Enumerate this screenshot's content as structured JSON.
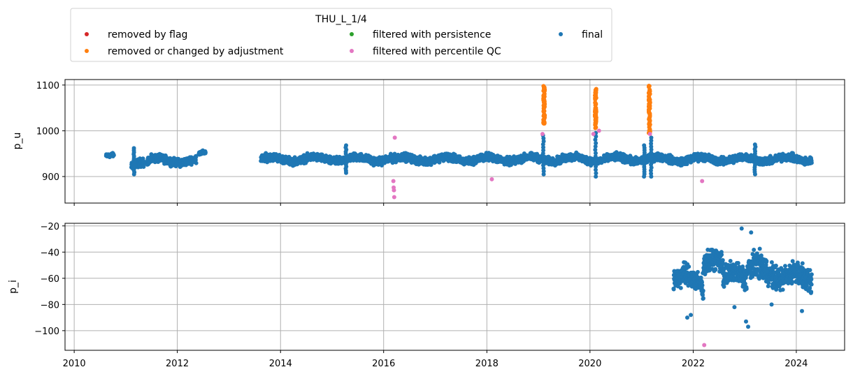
{
  "legend": {
    "title": "THU_L_1/4",
    "entries": [
      {
        "label": "removed by flag",
        "color": "#d62728"
      },
      {
        "label": "removed or changed by adjustment",
        "color": "#ff7f0e"
      },
      {
        "label": "filtered with persistence",
        "color": "#2ca02c"
      },
      {
        "label": "filtered with percentile QC",
        "color": "#e377c2"
      },
      {
        "label": "final",
        "color": "#1f77b4"
      }
    ]
  },
  "chart_data": [
    {
      "type": "scatter",
      "ylabel": "p_u",
      "xlim": [
        "2009-10-28",
        "2024-12-08"
      ],
      "ylim": [
        842,
        1112
      ],
      "xticks": [
        "2010",
        "2012",
        "2014",
        "2016",
        "2018",
        "2020",
        "2022",
        "2024"
      ],
      "yticks": [
        900,
        1000,
        1100
      ],
      "grid": true,
      "final_segments": [
        {
          "x": [
            "2010-08-15",
            "2010-10-10"
          ],
          "y": [
            945,
            6
          ]
        },
        {
          "x": [
            "2011-02-10",
            "2011-05-10"
          ],
          "y": [
            925,
            13
          ]
        },
        {
          "x": [
            "2011-06-01",
            "2012-05-15"
          ],
          "y": [
            935,
            12
          ]
        },
        {
          "x": [
            "2012-06-01",
            "2012-07-20"
          ],
          "y": [
            951,
            6
          ]
        },
        {
          "x": [
            "2013-08-15",
            "2016-03-01"
          ],
          "y": [
            938,
            12
          ]
        },
        {
          "x": [
            "2016-03-01",
            "2024-04-20"
          ],
          "y": [
            938,
            12
          ]
        }
      ],
      "final_spikes": [
        {
          "x": "2011-03-01",
          "y": [
            905,
            962
          ]
        },
        {
          "x": "2015-04-10",
          "y": [
            908,
            968
          ]
        },
        {
          "x": "2019-02-05",
          "y": [
            905,
            990
          ]
        },
        {
          "x": "2020-02-10",
          "y": [
            900,
            995
          ]
        },
        {
          "x": "2021-01-20",
          "y": [
            900,
            968
          ]
        },
        {
          "x": "2021-03-10",
          "y": [
            900,
            985
          ]
        },
        {
          "x": "2023-03-15",
          "y": [
            905,
            970
          ]
        }
      ],
      "adjustment_bands": [
        {
          "x": "2019-02-10",
          "y": [
            1015,
            1098
          ]
        },
        {
          "x": "2020-02-10",
          "y": [
            1005,
            1098
          ]
        },
        {
          "x": "2021-02-25",
          "y": [
            995,
            1100
          ]
        }
      ],
      "percentile_points": [
        {
          "x": "2016-03-10",
          "y": 890
        },
        {
          "x": "2016-03-12",
          "y": 876
        },
        {
          "x": "2016-03-14",
          "y": 870
        },
        {
          "x": "2016-03-16",
          "y": 855
        },
        {
          "x": "2016-03-20",
          "y": 985
        },
        {
          "x": "2018-02-05",
          "y": 894
        },
        {
          "x": "2019-01-30",
          "y": 993
        },
        {
          "x": "2020-01-25",
          "y": 993
        },
        {
          "x": "2020-03-05",
          "y": 1000
        },
        {
          "x": "2021-03-01",
          "y": 993
        },
        {
          "x": "2022-03-05",
          "y": 890
        }
      ]
    },
    {
      "type": "scatter",
      "ylabel": "p_i",
      "xlim": [
        "2009-10-28",
        "2024-12-08"
      ],
      "ylim": [
        -115,
        -18
      ],
      "xticks": [
        "2010",
        "2012",
        "2014",
        "2016",
        "2018",
        "2020",
        "2022",
        "2024"
      ],
      "yticks": [
        -20,
        -40,
        -60,
        -80,
        -100
      ],
      "grid": true,
      "final_segments": [
        {
          "x": [
            "2021-08-15",
            "2022-03-15"
          ],
          "y": [
            -62,
            12
          ]
        },
        {
          "x": [
            "2022-03-15",
            "2022-08-01"
          ],
          "y": [
            -50,
            12
          ]
        },
        {
          "x": [
            "2022-08-01",
            "2023-01-15"
          ],
          "y": [
            -60,
            12
          ]
        },
        {
          "x": [
            "2023-01-15",
            "2023-10-01"
          ],
          "y": [
            -55,
            14
          ]
        },
        {
          "x": [
            "2023-10-01",
            "2024-04-20"
          ],
          "y": [
            -60,
            12
          ]
        }
      ],
      "final_outliers": [
        {
          "x": "2021-11-20",
          "y": -90
        },
        {
          "x": "2021-12-15",
          "y": -88
        },
        {
          "x": "2022-10-20",
          "y": -82
        },
        {
          "x": "2022-12-10",
          "y": -22
        },
        {
          "x": "2023-01-10",
          "y": -93
        },
        {
          "x": "2023-01-25",
          "y": -97
        },
        {
          "x": "2023-02-15",
          "y": -25
        },
        {
          "x": "2023-07-10",
          "y": -80
        },
        {
          "x": "2024-02-10",
          "y": -85
        }
      ],
      "percentile_points": [
        {
          "x": "2022-03-20",
          "y": -111
        }
      ]
    }
  ]
}
